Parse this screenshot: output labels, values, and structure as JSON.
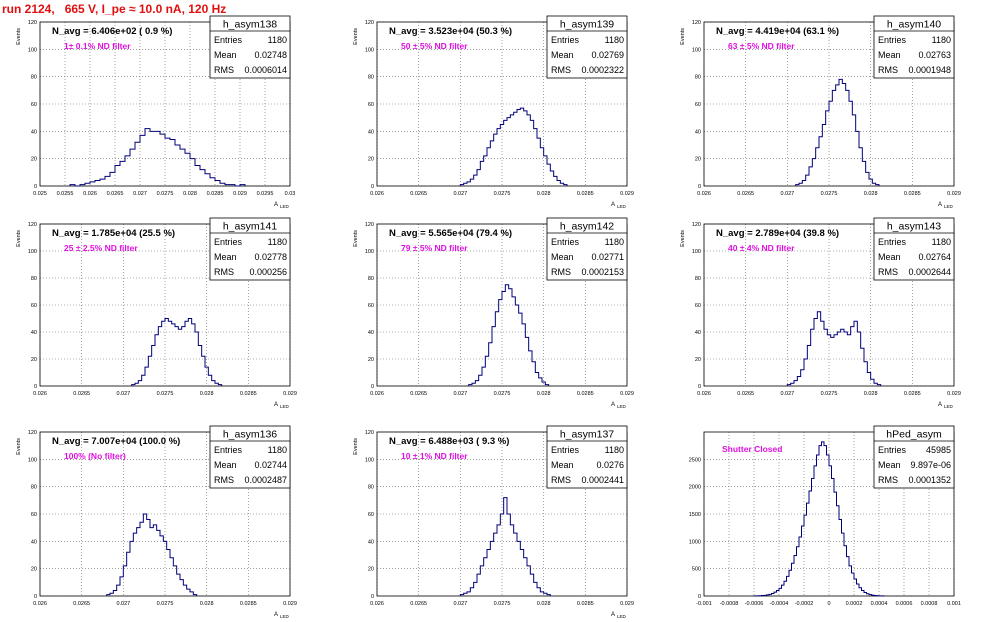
{
  "header": {
    "title": "run 2124,   665 V, I_pe ≈ 10.0 nA, 120 Hz"
  },
  "colors": {
    "title": "#e01010",
    "histogram": "#00007a",
    "filter_label": "#e010e0",
    "grid": "#666666"
  },
  "chart_data": [
    {
      "type": "histogram",
      "name": "h_asym138",
      "stats": {
        "entries_label": "Entries",
        "entries": "1180",
        "mean_label": "Mean",
        "mean": "0.02748",
        "rms_label": "RMS",
        "rms": "0.0006014"
      },
      "annotation": "N_avg = 6.406e+02 ( 0.9 %)",
      "filter": "1± 0.1% ND filter",
      "ylabel": "Events",
      "xlabel": "A",
      "xlabel_sub": "LED",
      "xlim": [
        0.025,
        0.03
      ],
      "ylim": [
        0,
        120
      ],
      "xticks": [
        "0.025",
        "0.0255",
        "0.026",
        "0.0265",
        "0.027",
        "0.0275",
        "0.028",
        "0.0285",
        "0.029",
        "0.0295",
        "0.03"
      ],
      "yticks": [
        "0",
        "20",
        "40",
        "60",
        "80",
        "100",
        "120"
      ],
      "grid": true,
      "bins": {
        "start": 0.0256,
        "width": 0.0001,
        "values": [
          1,
          0,
          1,
          2,
          3,
          4,
          5,
          7,
          10,
          15,
          18,
          22,
          27,
          32,
          37,
          42,
          40,
          40,
          38,
          35,
          34,
          30,
          27,
          24,
          20,
          15,
          12,
          9,
          6,
          4,
          2,
          1,
          1,
          0,
          1
        ]
      }
    },
    {
      "type": "histogram",
      "name": "h_asym139",
      "stats": {
        "entries_label": "Entries",
        "entries": "1180",
        "mean_label": "Mean",
        "mean": "0.02769",
        "rms_label": "RMS",
        "rms": "0.0002322"
      },
      "annotation": "N_avg = 3.523e+04 (50.3 %)",
      "filter": "50 ± 5% ND filter",
      "ylabel": "Events",
      "xlabel": "A",
      "xlabel_sub": "LED",
      "xlim": [
        0.026,
        0.029
      ],
      "ylim": [
        0,
        120
      ],
      "xticks": [
        "0.026",
        "0.0265",
        "0.027",
        "0.0275",
        "0.028",
        "0.0285",
        "0.029"
      ],
      "yticks": [
        "0",
        "20",
        "40",
        "60",
        "80",
        "100",
        "120"
      ],
      "grid": true,
      "bins": {
        "start": 0.027,
        "width": 4e-05,
        "values": [
          1,
          2,
          3,
          5,
          8,
          12,
          18,
          22,
          28,
          33,
          38,
          42,
          45,
          48,
          50,
          52,
          54,
          56,
          57,
          55,
          52,
          48,
          42,
          35,
          28,
          22,
          16,
          11,
          7,
          4,
          2,
          1
        ]
      }
    },
    {
      "type": "histogram",
      "name": "h_asym140",
      "stats": {
        "entries_label": "Entries",
        "entries": "1180",
        "mean_label": "Mean",
        "mean": "0.02763",
        "rms_label": "RMS",
        "rms": "0.0001948"
      },
      "annotation": "N_avg = 4.419e+04 (63.1 %)",
      "filter": "63 ± 5% ND filter",
      "ylabel": "Events",
      "xlabel": "A",
      "xlabel_sub": "LED",
      "xlim": [
        0.026,
        0.029
      ],
      "ylim": [
        0,
        120
      ],
      "xticks": [
        "0.026",
        "0.0265",
        "0.027",
        "0.0275",
        "0.028",
        "0.0285",
        "0.029"
      ],
      "yticks": [
        "0",
        "20",
        "40",
        "60",
        "80",
        "100",
        "120"
      ],
      "grid": true,
      "bins": {
        "start": 0.0271,
        "width": 4e-05,
        "values": [
          1,
          2,
          4,
          8,
          14,
          20,
          28,
          36,
          45,
          55,
          62,
          70,
          74,
          78,
          75,
          70,
          62,
          52,
          40,
          28,
          18,
          10,
          5,
          2,
          1
        ]
      }
    },
    {
      "type": "histogram",
      "name": "h_asym141",
      "stats": {
        "entries_label": "Entries",
        "entries": "1180",
        "mean_label": "Mean",
        "mean": "0.02778",
        "rms_label": "RMS",
        "rms": "0.000256"
      },
      "annotation": "N_avg = 1.785e+04 (25.5 %)",
      "filter": "25 ± 2.5% ND filter",
      "ylabel": "Events",
      "xlabel": "A",
      "xlabel_sub": "LED",
      "xlim": [
        0.026,
        0.029
      ],
      "ylim": [
        0,
        120
      ],
      "xticks": [
        "0.026",
        "0.0265",
        "0.027",
        "0.0275",
        "0.028",
        "0.0285",
        "0.029"
      ],
      "yticks": [
        "0",
        "20",
        "40",
        "60",
        "80",
        "100",
        "120"
      ],
      "grid": true,
      "bins": {
        "start": 0.0271,
        "width": 4e-05,
        "values": [
          1,
          2,
          4,
          8,
          14,
          22,
          30,
          38,
          44,
          48,
          50,
          48,
          46,
          44,
          42,
          44,
          48,
          50,
          46,
          40,
          30,
          22,
          14,
          8,
          4,
          2,
          1
        ]
      }
    },
    {
      "type": "histogram",
      "name": "h_asym142",
      "stats": {
        "entries_label": "Entries",
        "entries": "1180",
        "mean_label": "Mean",
        "mean": "0.02771",
        "rms_label": "RMS",
        "rms": "0.0002153"
      },
      "annotation": "N_avg = 5.565e+04 (79.4 %)",
      "filter": "79 ± 5% ND filter",
      "ylabel": "Events",
      "xlabel": "A",
      "xlabel_sub": "LED",
      "xlim": [
        0.026,
        0.029
      ],
      "ylim": [
        0,
        120
      ],
      "xticks": [
        "0.026",
        "0.0265",
        "0.027",
        "0.0275",
        "0.028",
        "0.0285",
        "0.029"
      ],
      "yticks": [
        "0",
        "20",
        "40",
        "60",
        "80",
        "100",
        "120"
      ],
      "grid": true,
      "bins": {
        "start": 0.0271,
        "width": 4e-05,
        "values": [
          1,
          2,
          4,
          8,
          14,
          22,
          32,
          44,
          55,
          64,
          70,
          75,
          72,
          66,
          60,
          54,
          46,
          36,
          26,
          18,
          10,
          6,
          3,
          1
        ]
      }
    },
    {
      "type": "histogram",
      "name": "h_asym143",
      "stats": {
        "entries_label": "Entries",
        "entries": "1180",
        "mean_label": "Mean",
        "mean": "0.02764",
        "rms_label": "RMS",
        "rms": "0.0002644"
      },
      "annotation": "N_avg = 2.789e+04 (39.8 %)",
      "filter": "40 ± 4% ND filter",
      "ylabel": "Events",
      "xlabel": "A",
      "xlabel_sub": "LED",
      "xlim": [
        0.026,
        0.029
      ],
      "ylim": [
        0,
        120
      ],
      "xticks": [
        "0.026",
        "0.0265",
        "0.027",
        "0.0275",
        "0.028",
        "0.0285",
        "0.029"
      ],
      "yticks": [
        "0",
        "20",
        "40",
        "60",
        "80",
        "100",
        "120"
      ],
      "grid": true,
      "bins": {
        "start": 0.027,
        "width": 4e-05,
        "values": [
          1,
          2,
          4,
          7,
          12,
          20,
          30,
          42,
          50,
          55,
          48,
          42,
          38,
          36,
          38,
          40,
          42,
          40,
          38,
          44,
          48,
          40,
          28,
          18,
          10,
          5,
          2,
          1
        ]
      }
    },
    {
      "type": "histogram",
      "name": "h_asym136",
      "stats": {
        "entries_label": "Entries",
        "entries": "1180",
        "mean_label": "Mean",
        "mean": "0.02744",
        "rms_label": "RMS",
        "rms": "0.0002487"
      },
      "annotation": "N_avg = 7.007e+04 (100.0 %)",
      "filter": "100% (No filter)",
      "ylabel": "Events",
      "xlabel": "A",
      "xlabel_sub": "LED",
      "xlim": [
        0.026,
        0.029
      ],
      "ylim": [
        0,
        120
      ],
      "xticks": [
        "0.026",
        "0.0265",
        "0.027",
        "0.0275",
        "0.028",
        "0.0285",
        "0.029"
      ],
      "yticks": [
        "0",
        "20",
        "40",
        "60",
        "80",
        "100",
        "120"
      ],
      "grid": true,
      "bins": {
        "start": 0.0268,
        "width": 4e-05,
        "values": [
          1,
          2,
          4,
          8,
          14,
          22,
          32,
          40,
          46,
          50,
          54,
          60,
          56,
          50,
          52,
          48,
          44,
          40,
          34,
          28,
          22,
          16,
          12,
          8,
          5,
          3,
          1
        ]
      }
    },
    {
      "type": "histogram",
      "name": "h_asym137",
      "stats": {
        "entries_label": "Entries",
        "entries": "1180",
        "mean_label": "Mean",
        "mean": "0.0276",
        "rms_label": "RMS",
        "rms": "0.0002441"
      },
      "annotation": "N_avg = 6.488e+03 ( 9.3 %)",
      "filter": "10 ± 1% ND filter",
      "ylabel": "Events",
      "xlabel": "A",
      "xlabel_sub": "LED",
      "xlim": [
        0.026,
        0.029
      ],
      "ylim": [
        0,
        120
      ],
      "xticks": [
        "0.026",
        "0.0265",
        "0.027",
        "0.0275",
        "0.028",
        "0.0285",
        "0.029"
      ],
      "yticks": [
        "0",
        "20",
        "40",
        "60",
        "80",
        "100",
        "120"
      ],
      "grid": true,
      "bins": {
        "start": 0.027,
        "width": 4e-05,
        "values": [
          1,
          2,
          3,
          6,
          10,
          16,
          22,
          28,
          34,
          40,
          46,
          52,
          60,
          72,
          60,
          52,
          46,
          40,
          34,
          28,
          22,
          16,
          10,
          6,
          3,
          2,
          1
        ]
      }
    },
    {
      "type": "histogram",
      "name": "hPed_asym",
      "stats": {
        "entries_label": "Entries",
        "entries": "45985",
        "mean_label": "Mean",
        "mean": "9.897e-06",
        "rms_label": "RMS",
        "rms": "0.0001352"
      },
      "annotation": "",
      "filter": "Shutter Closed",
      "ylabel": "",
      "xlabel": "",
      "xlabel_sub": "",
      "xlim": [
        -0.001,
        0.001
      ],
      "ylim": [
        0,
        3000
      ],
      "xticks": [
        "-0.001",
        "-0.0008",
        "-0.0006",
        "-0.0004",
        "-0.0002",
        "0",
        "0.0002",
        "0.0004",
        "0.0006",
        "0.0008",
        "0.001"
      ],
      "yticks": [
        "0",
        "500",
        "1000",
        "1500",
        "2000",
        "2500"
      ],
      "grid": true,
      "bins": {
        "start": -0.0006,
        "width": 2e-05,
        "values": [
          2,
          3,
          5,
          8,
          12,
          20,
          30,
          45,
          70,
          100,
          140,
          200,
          270,
          360,
          470,
          600,
          740,
          900,
          1080,
          1280,
          1480,
          1700,
          1920,
          2150,
          2380,
          2580,
          2750,
          2820,
          2750,
          2580,
          2380,
          2150,
          1900,
          1650,
          1400,
          1150,
          920,
          720,
          550,
          420,
          310,
          220,
          150,
          100,
          65,
          40,
          25,
          15,
          9,
          5,
          3,
          2
        ]
      }
    }
  ]
}
